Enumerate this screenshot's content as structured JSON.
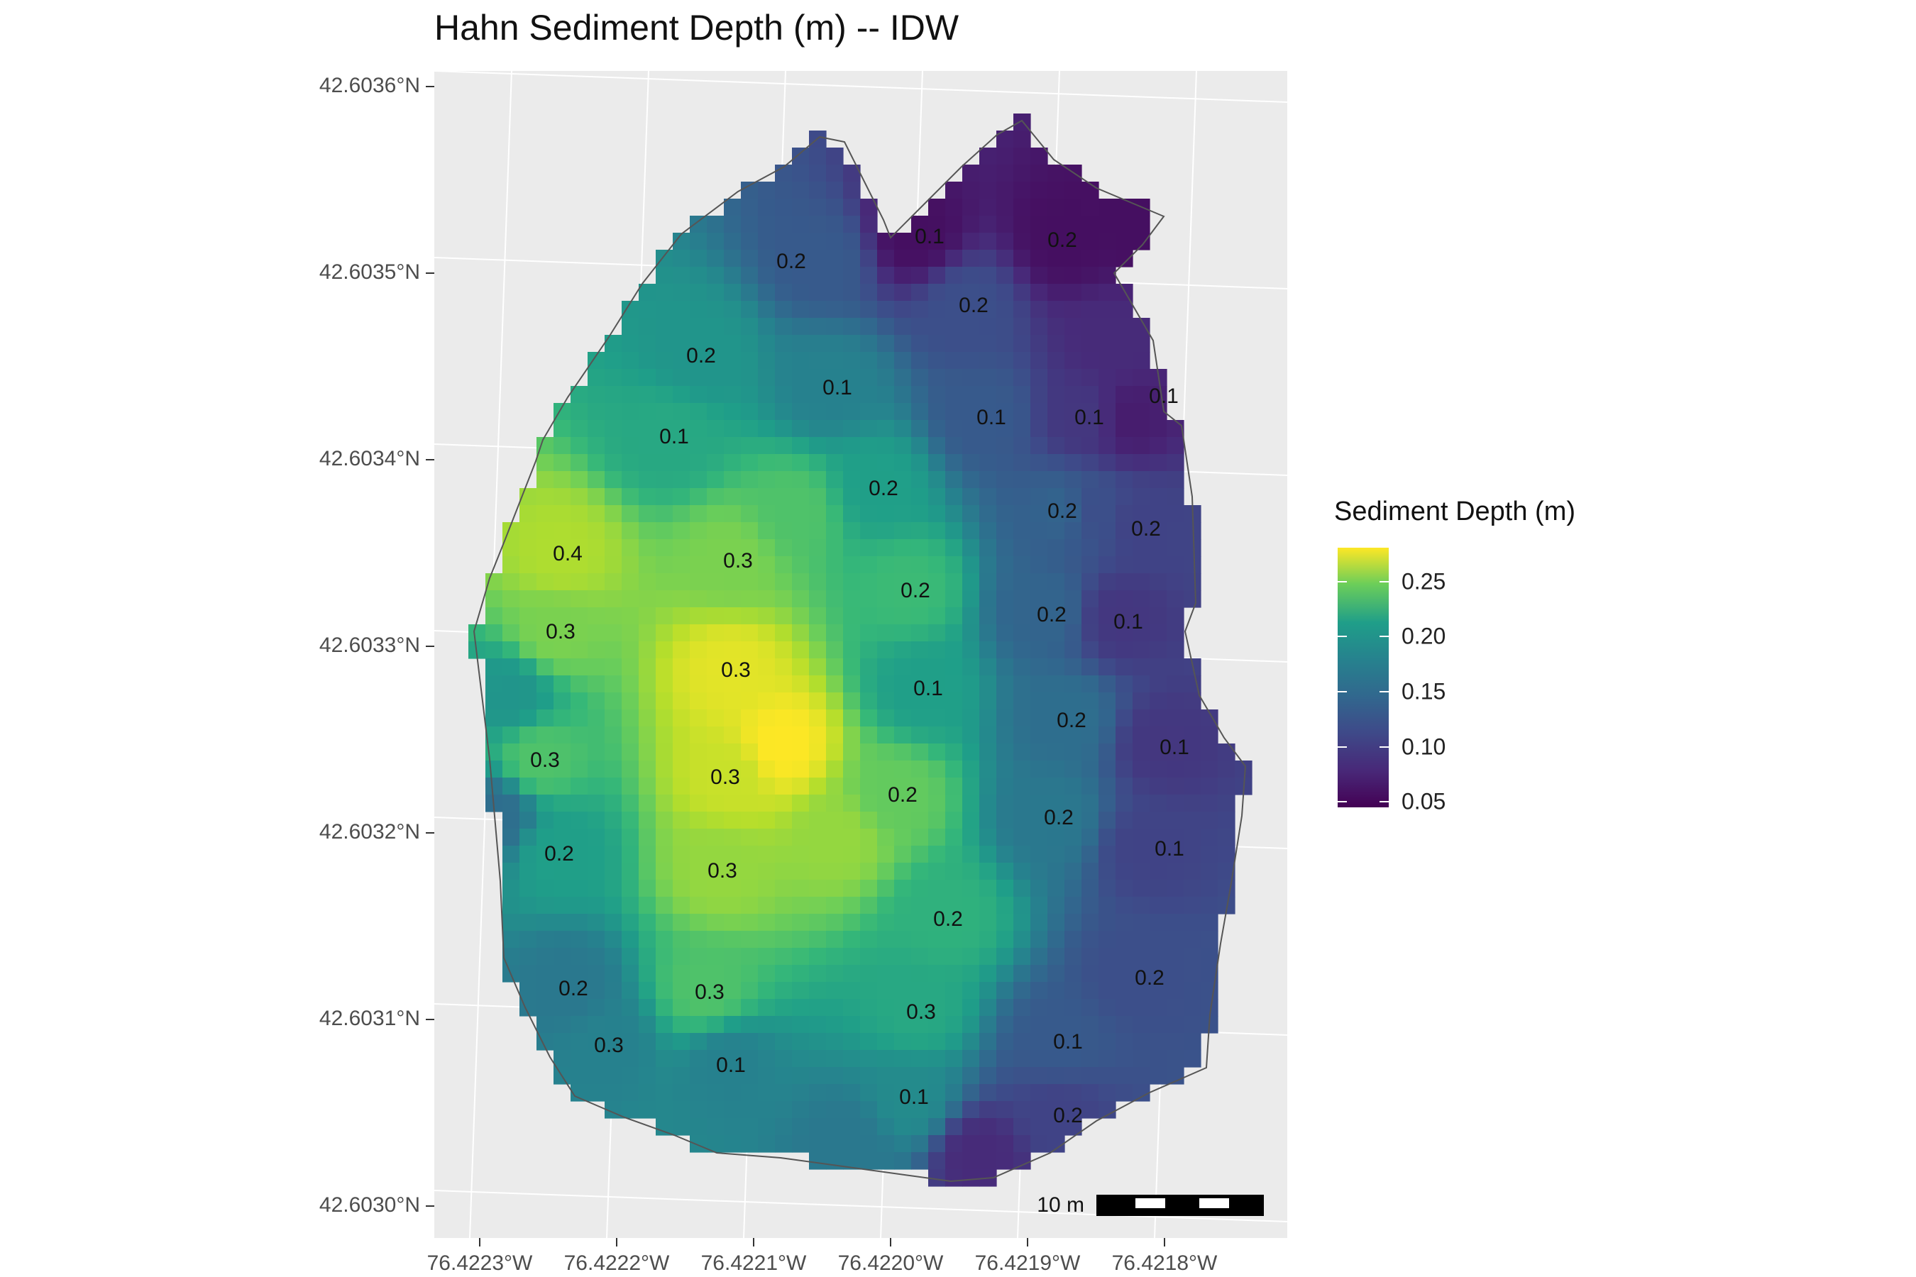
{
  "title": "Hahn Sediment Depth (m) -- IDW",
  "map": {
    "y_ticks": [
      "42.6036°N",
      "42.6035°N",
      "42.6034°N",
      "42.6033°N",
      "42.6032°N",
      "42.6031°N",
      "42.6030°N"
    ],
    "x_ticks": [
      "76.4223°W",
      "76.4222°W",
      "76.4221°W",
      "76.4220°W",
      "76.4219°W",
      "76.4218°W"
    ],
    "scale_bar_label": "10 m",
    "panel_color": "#ebebeb",
    "grid_color": "#ffffff",
    "boundary_color": "#555555"
  },
  "legend": {
    "title": "Sediment Depth (m)",
    "labels": [
      "0.25",
      "0.20",
      "0.15",
      "0.10",
      "0.05"
    ],
    "colormap": "viridis",
    "range": [
      0.04,
      0.29
    ]
  },
  "sample_points": [
    {
      "label": "0.1"
    },
    {
      "label": "0.2"
    },
    {
      "label": "0.2"
    },
    {
      "label": "0.2"
    },
    {
      "label": "0.1"
    },
    {
      "label": "0.2"
    },
    {
      "label": "0.1"
    },
    {
      "label": "0.1"
    },
    {
      "label": "0.1"
    },
    {
      "label": "0.1"
    },
    {
      "label": "0.2"
    },
    {
      "label": "0.2"
    },
    {
      "label": "0.2"
    },
    {
      "label": "0.4"
    },
    {
      "label": "0.3"
    },
    {
      "label": "0.2"
    },
    {
      "label": "0.2"
    },
    {
      "label": "0.1"
    },
    {
      "label": "0.3"
    },
    {
      "label": "0.3"
    },
    {
      "label": "0.1"
    },
    {
      "label": "0.2"
    },
    {
      "label": "0.1"
    },
    {
      "label": "0.3"
    },
    {
      "label": "0.3"
    },
    {
      "label": "0.2"
    },
    {
      "label": "0.2"
    },
    {
      "label": "0.1"
    },
    {
      "label": "0.2"
    },
    {
      "label": "0.3"
    },
    {
      "label": "0.2"
    },
    {
      "label": "0.2"
    },
    {
      "label": "0.2"
    },
    {
      "label": "0.3"
    },
    {
      "label": "0.3"
    },
    {
      "label": "0.3"
    },
    {
      "label": "0.1"
    },
    {
      "label": "0.1"
    },
    {
      "label": "0.1"
    },
    {
      "label": "0.2"
    }
  ]
}
